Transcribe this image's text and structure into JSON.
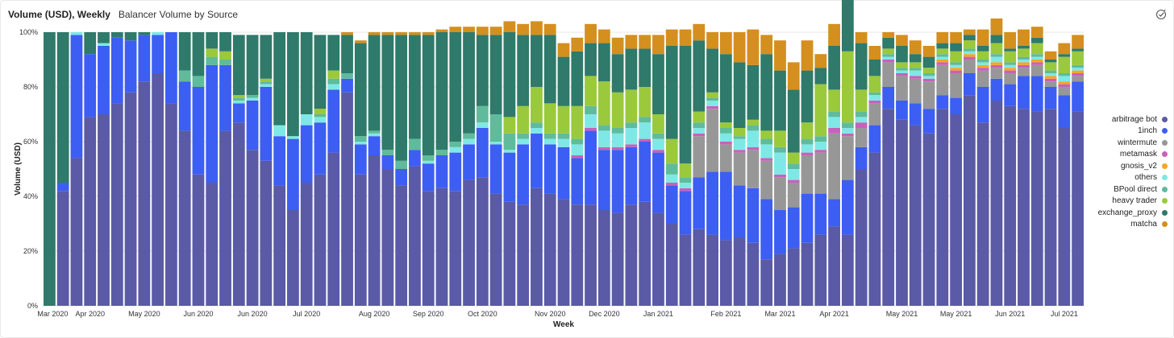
{
  "header": {
    "title": "Volume (USD), Weekly",
    "subtitle": "Balancer Volume by Source"
  },
  "icons": {
    "status": "check-circle-icon"
  },
  "chart_data": {
    "type": "bar",
    "stacked": true,
    "normalized": true,
    "xlabel": "Week",
    "ylabel": "Volume (USD)",
    "ylim": [
      0,
      100
    ],
    "yticks": [
      "0%",
      "20%",
      "40%",
      "60%",
      "80%",
      "100%"
    ],
    "xticks": [
      "Mar 2020",
      "Apr 2020",
      "May 2020",
      "Jun 2020",
      "Jun 2020",
      "Jul 2020",
      "Aug 2020",
      "Sep 2020",
      "Oct 2020",
      "Nov 2020",
      "Dec 2020",
      "Jan 2021",
      "Feb 2021",
      "Mar 2021",
      "Apr 2021",
      "May 2021",
      "May 2021",
      "Jun 2021",
      "Jul 2021"
    ],
    "grid": true,
    "legend_position": "right",
    "series": [
      {
        "name": "arbitrage bot",
        "color": "#5a5aa6",
        "values": [
          0,
          42,
          54,
          69,
          70,
          74,
          78,
          82,
          85,
          74,
          64,
          48,
          45,
          64,
          67,
          57,
          53,
          44,
          35,
          45,
          48,
          56,
          78,
          48,
          55,
          50,
          44,
          51,
          42,
          43,
          42,
          46,
          47,
          41,
          38,
          37,
          43,
          41,
          39,
          37,
          37,
          35,
          34,
          37,
          38,
          34,
          30,
          26,
          28,
          26,
          24,
          25,
          23,
          17,
          19,
          21,
          23,
          26,
          29,
          26,
          50,
          56,
          72,
          68,
          66,
          63,
          72,
          70,
          77,
          67,
          75,
          73,
          72,
          71,
          72,
          65,
          71
        ]
      },
      {
        "name": "1inch",
        "color": "#3d5ef2",
        "values": [
          0,
          3,
          45,
          23,
          25,
          24,
          19,
          17,
          14,
          26,
          18,
          32,
          43,
          24,
          7,
          18,
          27,
          18,
          26,
          21,
          19,
          23,
          5,
          11,
          7,
          5,
          6,
          6,
          10,
          12,
          14,
          13,
          18,
          18,
          18,
          22,
          20,
          18,
          19,
          17,
          27,
          22,
          23,
          21,
          22,
          22,
          14,
          16,
          19,
          23,
          25,
          19,
          20,
          22,
          16,
          15,
          18,
          15,
          10,
          20,
          8,
          10,
          8,
          7,
          8,
          9,
          5,
          6,
          8,
          13,
          8,
          8,
          12,
          13,
          8,
          12,
          11
        ]
      },
      {
        "name": "wintermute",
        "color": "#979797",
        "values": [
          0,
          0,
          0,
          0,
          0,
          0,
          0,
          0,
          0,
          0,
          0,
          0,
          0,
          0,
          0,
          0,
          0,
          0,
          0,
          0,
          0,
          0,
          0,
          0,
          0,
          0,
          0,
          0,
          0,
          0,
          0,
          0,
          0,
          0,
          0,
          0,
          0,
          0,
          0,
          0,
          0,
          0,
          0,
          0,
          0,
          0,
          0,
          0,
          15,
          23,
          10,
          12,
          14,
          14,
          12,
          9,
          14,
          15,
          24,
          16,
          7,
          8,
          9,
          9,
          9,
          10,
          11,
          9,
          5,
          6,
          4,
          4,
          3,
          4,
          2,
          3,
          2
        ]
      },
      {
        "name": "metamask",
        "color": "#c861bc",
        "values": [
          0,
          0,
          0,
          0,
          0,
          0,
          0,
          0,
          0,
          0,
          0,
          0,
          0,
          0,
          0,
          0,
          0,
          0,
          0,
          0,
          0,
          0,
          0,
          0,
          0,
          0,
          0,
          0,
          0,
          0,
          0,
          0,
          0,
          0,
          0,
          0,
          0,
          0,
          0,
          1,
          1,
          1,
          1,
          1,
          1,
          1,
          1,
          1,
          1,
          1,
          1,
          1,
          1,
          1,
          1,
          1,
          1,
          1,
          2,
          1,
          2,
          1,
          1,
          1,
          1,
          1,
          1,
          1,
          1,
          1,
          1,
          1,
          1,
          1,
          1,
          1,
          1
        ]
      },
      {
        "name": "gnosis_v2",
        "color": "#f5a623",
        "values": [
          0,
          0,
          0,
          0,
          0,
          0,
          0,
          0,
          0,
          0,
          0,
          0,
          0,
          0,
          0,
          0,
          0,
          0,
          0,
          0,
          0,
          0,
          0,
          0,
          0,
          0,
          0,
          0,
          0,
          0,
          0,
          0,
          0,
          0,
          0,
          0,
          0,
          0,
          0,
          0,
          0,
          0,
          0,
          0,
          0,
          0,
          0,
          0,
          0,
          0,
          0,
          0,
          0,
          0,
          0,
          0,
          0,
          0,
          0,
          0,
          0,
          0,
          0,
          0,
          0,
          0,
          1,
          1,
          1,
          1,
          1,
          1,
          1,
          1,
          1,
          1,
          1
        ]
      },
      {
        "name": "others",
        "color": "#7fe8e6",
        "values": [
          0,
          0,
          1,
          0,
          1,
          0,
          0,
          0,
          1,
          0,
          0,
          0,
          0,
          0,
          1,
          1,
          1,
          4,
          1,
          4,
          2,
          2,
          0,
          1,
          1,
          0,
          0,
          0,
          1,
          0,
          2,
          2,
          2,
          1,
          1,
          2,
          2,
          2,
          3,
          4,
          5,
          6,
          5,
          6,
          6,
          4,
          3,
          2,
          2,
          2,
          3,
          4,
          6,
          5,
          8,
          4,
          3,
          3,
          4,
          2,
          2,
          2,
          1,
          1,
          2,
          1,
          1,
          1,
          1,
          1,
          2,
          1,
          1,
          1,
          1,
          2,
          1
        ]
      },
      {
        "name": "BPool direct",
        "color": "#5fbb9b",
        "values": [
          0,
          0,
          0,
          0,
          0,
          0,
          0,
          0,
          0,
          0,
          4,
          4,
          3,
          2,
          1,
          1,
          1,
          0,
          0,
          0,
          1,
          2,
          2,
          2,
          1,
          2,
          3,
          4,
          2,
          2,
          2,
          2,
          6,
          10,
          6,
          2,
          2,
          2,
          2,
          2,
          3,
          2,
          2,
          2,
          2,
          2,
          4,
          2,
          2,
          1,
          2,
          1,
          2,
          2,
          2,
          2,
          2,
          2,
          2,
          2,
          2,
          1,
          1,
          1,
          1,
          1,
          1,
          1,
          1,
          1,
          1,
          1,
          1,
          1,
          1,
          1,
          1
        ]
      },
      {
        "name": "heavy trader",
        "color": "#9ac93c",
        "values": [
          0,
          0,
          0,
          0,
          0,
          0,
          0,
          0,
          0,
          0,
          0,
          0,
          3,
          3,
          1,
          0,
          1,
          0,
          0,
          0,
          2,
          3,
          0,
          0,
          0,
          0,
          0,
          0,
          0,
          0,
          0,
          0,
          0,
          0,
          6,
          10,
          13,
          11,
          10,
          12,
          11,
          16,
          13,
          12,
          11,
          7,
          9,
          5,
          4,
          2,
          2,
          3,
          2,
          3,
          6,
          4,
          6,
          19,
          8,
          26,
          8,
          6,
          2,
          2,
          2,
          2,
          2,
          4,
          3,
          3,
          4,
          4,
          3,
          4,
          3,
          6,
          5
        ]
      },
      {
        "name": "exchange_proxy",
        "color": "#2f7a6a",
        "values": [
          100,
          55,
          0,
          8,
          4,
          2,
          3,
          1,
          0,
          0,
          14,
          16,
          6,
          7,
          22,
          22,
          16,
          34,
          38,
          30,
          27,
          13,
          14,
          34,
          35,
          42,
          46,
          38,
          44,
          43,
          40,
          37,
          26,
          29,
          31,
          26,
          19,
          25,
          18,
          20,
          12,
          14,
          14,
          15,
          14,
          22,
          34,
          43,
          26,
          16,
          25,
          24,
          20,
          28,
          22,
          23,
          19,
          6,
          16,
          23,
          17,
          6,
          4,
          6,
          3,
          4,
          2,
          3,
          2,
          2,
          3,
          1,
          1,
          2,
          1,
          1,
          1
        ]
      },
      {
        "name": "matcha",
        "color": "#d48f1e",
        "values": [
          0,
          0,
          0,
          0,
          0,
          0,
          0,
          0,
          0,
          0,
          0,
          0,
          0,
          0,
          0,
          0,
          0,
          0,
          0,
          0,
          0,
          0,
          1,
          1,
          1,
          1,
          1,
          1,
          1,
          1,
          2,
          2,
          3,
          3,
          4,
          4,
          5,
          4,
          5,
          5,
          7,
          5,
          6,
          5,
          5,
          7,
          6,
          6,
          6,
          6,
          8,
          11,
          13,
          7,
          11,
          10,
          11,
          5,
          8,
          6,
          4,
          5,
          2,
          4,
          5,
          4,
          4,
          4,
          2,
          6,
          6,
          6,
          6,
          4,
          3,
          4,
          5
        ]
      }
    ]
  }
}
